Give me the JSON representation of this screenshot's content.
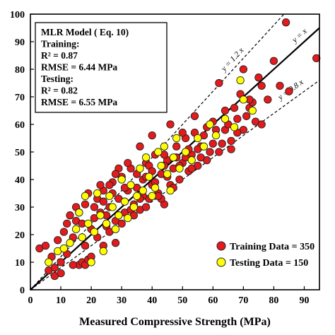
{
  "chart_data": {
    "type": "scatter",
    "title": "",
    "xlabel": "Measured Compressive Strength (MPa)",
    "ylabel": "",
    "xlim": [
      0,
      95
    ],
    "ylim": [
      0,
      100
    ],
    "x_ticks": [
      0,
      10,
      20,
      30,
      40,
      50,
      60,
      70,
      80,
      90
    ],
    "y_ticks": [
      0,
      10,
      20,
      30,
      40,
      50,
      60,
      70,
      80,
      90,
      100
    ],
    "grid": false,
    "legend_position": "bottom-right",
    "lines": [
      {
        "label": "y = x",
        "slope": 1.0,
        "style": "solid"
      },
      {
        "label": "y = 1.2 x",
        "slope": 1.2,
        "style": "dashed"
      },
      {
        "label": "y = 0.8 x",
        "slope": 0.8,
        "style": "dashed"
      }
    ],
    "info_box": [
      "MLR Model ( Eq. 10)",
      "Training:",
      "R² = 0.87",
      "RMSE = 6.44 MPa",
      "Testing:",
      "R² = 0.82",
      "RMSE = 6.55 MPa"
    ],
    "series": [
      {
        "name": "Training Data = 350",
        "color": "#e41a1c",
        "points": [
          [
            3,
            15
          ],
          [
            5,
            16
          ],
          [
            6,
            7
          ],
          [
            8,
            5
          ],
          [
            7,
            12
          ],
          [
            9,
            18
          ],
          [
            10,
            6
          ],
          [
            11,
            21
          ],
          [
            12,
            13
          ],
          [
            12,
            24
          ],
          [
            14,
            19
          ],
          [
            15,
            25
          ],
          [
            16,
            9
          ],
          [
            17,
            10
          ],
          [
            18,
            9
          ],
          [
            19,
            11
          ],
          [
            16,
            28
          ],
          [
            18,
            31
          ],
          [
            20,
            22
          ],
          [
            21,
            26
          ],
          [
            22,
            33
          ],
          [
            23,
            28
          ],
          [
            24,
            36
          ],
          [
            25,
            23
          ],
          [
            26,
            30
          ],
          [
            27,
            39
          ],
          [
            28,
            25
          ],
          [
            29,
            33
          ],
          [
            30,
            41
          ],
          [
            31,
            28
          ],
          [
            32,
            36
          ],
          [
            33,
            44
          ],
          [
            34,
            31
          ],
          [
            35,
            37
          ],
          [
            36,
            29
          ],
          [
            37,
            40
          ],
          [
            38,
            46
          ],
          [
            39,
            33
          ],
          [
            40,
            38
          ],
          [
            41,
            49
          ],
          [
            42,
            35
          ],
          [
            43,
            42
          ],
          [
            44,
            31
          ],
          [
            45,
            47
          ],
          [
            46,
            38
          ],
          [
            47,
            44
          ],
          [
            48,
            52
          ],
          [
            49,
            40
          ],
          [
            50,
            46
          ],
          [
            51,
            55
          ],
          [
            52,
            43
          ],
          [
            53,
            49
          ],
          [
            54,
            57
          ],
          [
            55,
            45
          ],
          [
            56,
            52
          ],
          [
            58,
            47
          ],
          [
            60,
            53
          ],
          [
            62,
            50
          ],
          [
            64,
            58
          ],
          [
            66,
            54
          ],
          [
            68,
            62
          ],
          [
            70,
            58
          ],
          [
            72,
            66
          ],
          [
            74,
            61
          ],
          [
            76,
            74
          ],
          [
            78,
            69
          ],
          [
            80,
            83
          ],
          [
            82,
            74
          ],
          [
            84,
            97
          ],
          [
            85,
            72
          ],
          [
            94,
            84
          ],
          [
            13,
            27
          ],
          [
            15,
            30
          ],
          [
            17,
            24
          ],
          [
            19,
            35
          ],
          [
            21,
            30
          ],
          [
            23,
            38
          ],
          [
            25,
            27
          ],
          [
            27,
            35
          ],
          [
            29,
            44
          ],
          [
            31,
            37
          ],
          [
            33,
            29
          ],
          [
            35,
            42
          ],
          [
            37,
            34
          ],
          [
            39,
            45
          ],
          [
            41,
            39
          ],
          [
            43,
            33
          ],
          [
            45,
            41
          ],
          [
            47,
            37
          ],
          [
            49,
            45
          ],
          [
            51,
            48
          ],
          [
            53,
            44
          ],
          [
            55,
            51
          ],
          [
            57,
            56
          ],
          [
            59,
            50
          ],
          [
            61,
            58
          ],
          [
            63,
            53
          ],
          [
            65,
            60
          ],
          [
            67,
            66
          ],
          [
            69,
            71
          ],
          [
            71,
            63
          ],
          [
            73,
            68
          ],
          [
            75,
            77
          ],
          [
            20,
            12
          ],
          [
            24,
            16
          ],
          [
            28,
            17
          ],
          [
            14,
            9
          ],
          [
            10,
            10
          ],
          [
            8,
            8
          ],
          [
            18,
            16
          ],
          [
            22,
            19
          ],
          [
            26,
            21
          ],
          [
            30,
            24
          ],
          [
            34,
            27
          ],
          [
            38,
            30
          ],
          [
            42,
            34
          ],
          [
            36,
            52
          ],
          [
            40,
            56
          ],
          [
            44,
            49
          ],
          [
            46,
            60
          ],
          [
            50,
            57
          ],
          [
            54,
            63
          ],
          [
            58,
            59
          ],
          [
            62,
            75
          ],
          [
            66,
            51
          ],
          [
            70,
            80
          ],
          [
            28,
            42
          ],
          [
            32,
            46
          ],
          [
            26,
            38
          ],
          [
            24,
            32
          ],
          [
            36,
            33
          ],
          [
            38,
            41
          ],
          [
            40,
            43
          ],
          [
            44,
            45
          ],
          [
            48,
            48
          ],
          [
            52,
            51
          ],
          [
            56,
            48
          ],
          [
            60,
            61
          ],
          [
            64,
            65
          ],
          [
            68,
            57
          ],
          [
            72,
            69
          ],
          [
            76,
            60
          ]
        ]
      },
      {
        "name": "Testing  Data = 150",
        "color": "#ffff00",
        "points": [
          [
            6,
            10
          ],
          [
            9,
            14
          ],
          [
            11,
            15
          ],
          [
            13,
            17
          ],
          [
            15,
            22
          ],
          [
            17,
            19
          ],
          [
            19,
            24
          ],
          [
            21,
            21
          ],
          [
            23,
            27
          ],
          [
            25,
            24
          ],
          [
            27,
            30
          ],
          [
            29,
            27
          ],
          [
            31,
            32
          ],
          [
            33,
            38
          ],
          [
            35,
            34
          ],
          [
            37,
            36
          ],
          [
            39,
            41
          ],
          [
            41,
            37
          ],
          [
            43,
            45
          ],
          [
            45,
            42
          ],
          [
            47,
            48
          ],
          [
            49,
            44
          ],
          [
            51,
            50
          ],
          [
            53,
            47
          ],
          [
            55,
            55
          ],
          [
            57,
            52
          ],
          [
            59,
            60
          ],
          [
            61,
            56
          ],
          [
            64,
            62
          ],
          [
            67,
            59
          ],
          [
            70,
            69
          ],
          [
            73,
            65
          ],
          [
            69,
            76
          ],
          [
            22,
            35
          ],
          [
            26,
            34
          ],
          [
            30,
            40
          ],
          [
            34,
            30
          ],
          [
            36,
            44
          ],
          [
            40,
            34
          ],
          [
            42,
            50
          ],
          [
            46,
            36
          ],
          [
            48,
            55
          ],
          [
            16,
            28
          ],
          [
            18,
            34
          ],
          [
            24,
            14
          ],
          [
            20,
            10
          ],
          [
            28,
            22
          ],
          [
            32,
            26
          ],
          [
            38,
            48
          ],
          [
            44,
            52
          ]
        ]
      }
    ]
  }
}
